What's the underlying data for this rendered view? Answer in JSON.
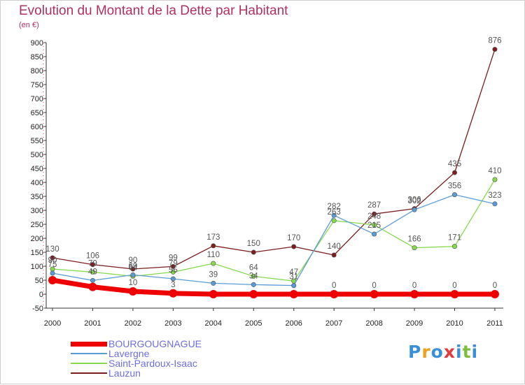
{
  "header": {
    "title": "Evolution du Montant de la Dette par Habitant",
    "unit": "(en €)"
  },
  "logo": {
    "text": "Proxiti",
    "colors": [
      "#3a8fd9",
      "#f0a020",
      "#3a8fd9",
      "#e23b3b",
      "#3a8fd9",
      "#7cbf3a",
      "#3a8fd9"
    ]
  },
  "chart_data": {
    "type": "line",
    "x": [
      "2000",
      "2001",
      "2002",
      "2003",
      "2004",
      "2005",
      "2006",
      "2007",
      "2008",
      "2009",
      "2010",
      "2011"
    ],
    "ylim": [
      -50,
      900
    ],
    "yticks": [
      -50,
      0,
      50,
      100,
      150,
      200,
      250,
      300,
      350,
      400,
      450,
      500,
      550,
      600,
      650,
      700,
      750,
      800,
      850,
      900
    ],
    "grid": false,
    "legend_position": "bottom",
    "series": [
      {
        "name": "BOURGOUGNAGUE",
        "color": "#ee0000",
        "width": 7,
        "marker_r": 6,
        "values": [
          50,
          26,
          10,
          3,
          0,
          0,
          0,
          0,
          0,
          0,
          0,
          0
        ],
        "labels": [
          "",
          "",
          "10",
          "3",
          "",
          "",
          "",
          "0",
          "0",
          "0",
          "0",
          "0"
        ]
      },
      {
        "name": "Lavergne",
        "color": "#5b9bd5",
        "width": 1.3,
        "marker_r": 3.2,
        "values": [
          75,
          49,
          69,
          55,
          39,
          34,
          31,
          282,
          215,
          302,
          356,
          323
        ],
        "labels": [
          "75",
          "49",
          "69",
          "55",
          "39",
          "34",
          "31",
          "282",
          "215",
          "302",
          "356",
          "323"
        ]
      },
      {
        "name": "Saint-Pardoux-Isaac",
        "color": "#86d94c",
        "width": 1.3,
        "marker_r": 3.2,
        "values": [
          90,
          79,
          64,
          79,
          110,
          64,
          47,
          263,
          248,
          166,
          171,
          410
        ],
        "labels": [
          "90",
          "79",
          "64",
          "79",
          "110",
          "64",
          "47",
          "263",
          "248",
          "166",
          "171",
          "410"
        ]
      },
      {
        "name": "Lauzun",
        "color": "#7a1e1e",
        "width": 1.3,
        "marker_r": 3.2,
        "values": [
          130,
          106,
          90,
          99,
          173,
          150,
          170,
          140,
          287,
          306,
          435,
          876
        ],
        "labels": [
          "130",
          "106",
          "90",
          "99",
          "173",
          "150",
          "170",
          "140",
          "287",
          "306",
          "435",
          "876"
        ]
      }
    ]
  }
}
